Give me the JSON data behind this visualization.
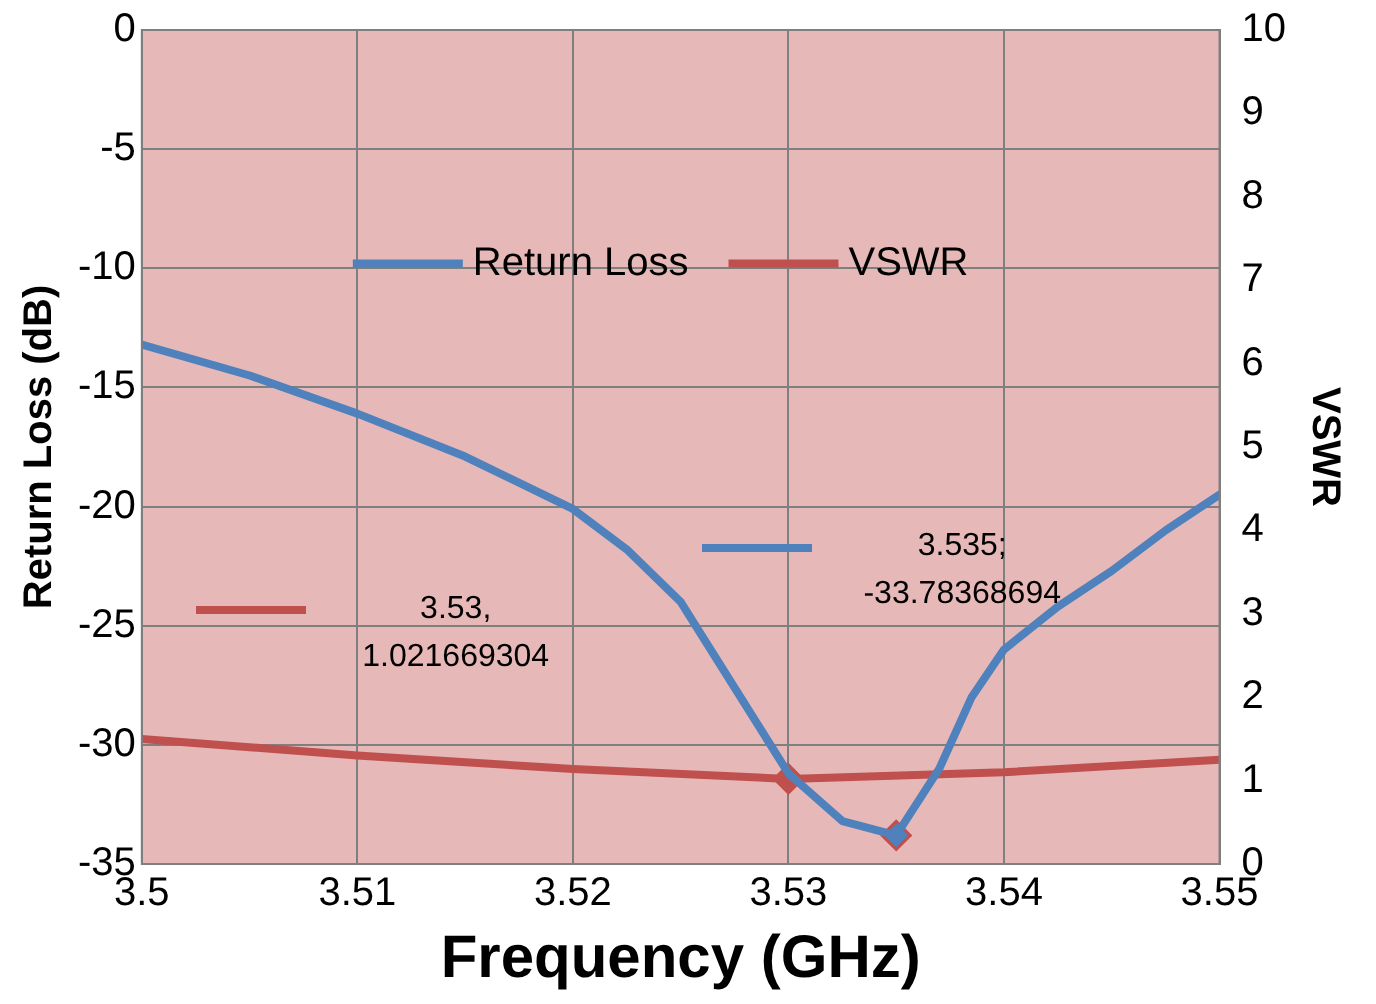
{
  "chart_data": {
    "type": "line",
    "xlabel": "Frequency (GHz)",
    "ylabel": "Return Loss (dB)",
    "y2label": "VSWR",
    "xlim": [
      3.5,
      3.55
    ],
    "xticks": [
      3.5,
      3.51,
      3.52,
      3.53,
      3.54,
      3.55
    ],
    "ylim": [
      -35,
      0
    ],
    "yticks": [
      -35,
      -30,
      -25,
      -20,
      -15,
      -10,
      -5,
      0
    ],
    "y2lim": [
      0,
      10
    ],
    "y2ticks": [
      0,
      1,
      2,
      3,
      4,
      5,
      6,
      7,
      8,
      9,
      10
    ],
    "grid": true,
    "legend": "top",
    "marker": "none",
    "line_style": "solid",
    "series": [
      {
        "name": "Return Loss",
        "color": "#4f81bd",
        "x": [
          3.5,
          3.505,
          3.51,
          3.515,
          3.52,
          3.5225,
          3.525,
          3.5275,
          3.53,
          3.5325,
          3.535,
          3.537,
          3.5385,
          3.54,
          3.5425,
          3.545,
          3.5475,
          3.55
        ],
        "values": [
          -13.2,
          -14.5,
          -16.1,
          -17.9,
          -20.1,
          -21.8,
          -24.0,
          -27.6,
          -31.2,
          -33.2,
          -33.8,
          -31.0,
          -28.0,
          -26.0,
          -24.2,
          -22.7,
          -21.0,
          -19.5
        ]
      },
      {
        "name": "VSWR",
        "color": "#c0504d",
        "axis": "y2",
        "x": [
          3.5,
          3.51,
          3.52,
          3.53,
          3.54,
          3.55
        ],
        "values": [
          1.5,
          1.3,
          1.14,
          1.02,
          1.1,
          1.25
        ]
      },
      {
        "type": "scatter",
        "marker": "diamond",
        "color": "#4f81bd",
        "x": [
          3.535
        ],
        "values": [
          -33.8
        ]
      },
      {
        "type": "scatter",
        "marker": "diamond",
        "color": "#c0504d",
        "axis": "y2",
        "x": [
          3.53
        ],
        "values": [
          1.02
        ]
      }
    ],
    "annotations": [
      "3.535; -33.78368694",
      "3.53, 1.021669304"
    ]
  }
}
